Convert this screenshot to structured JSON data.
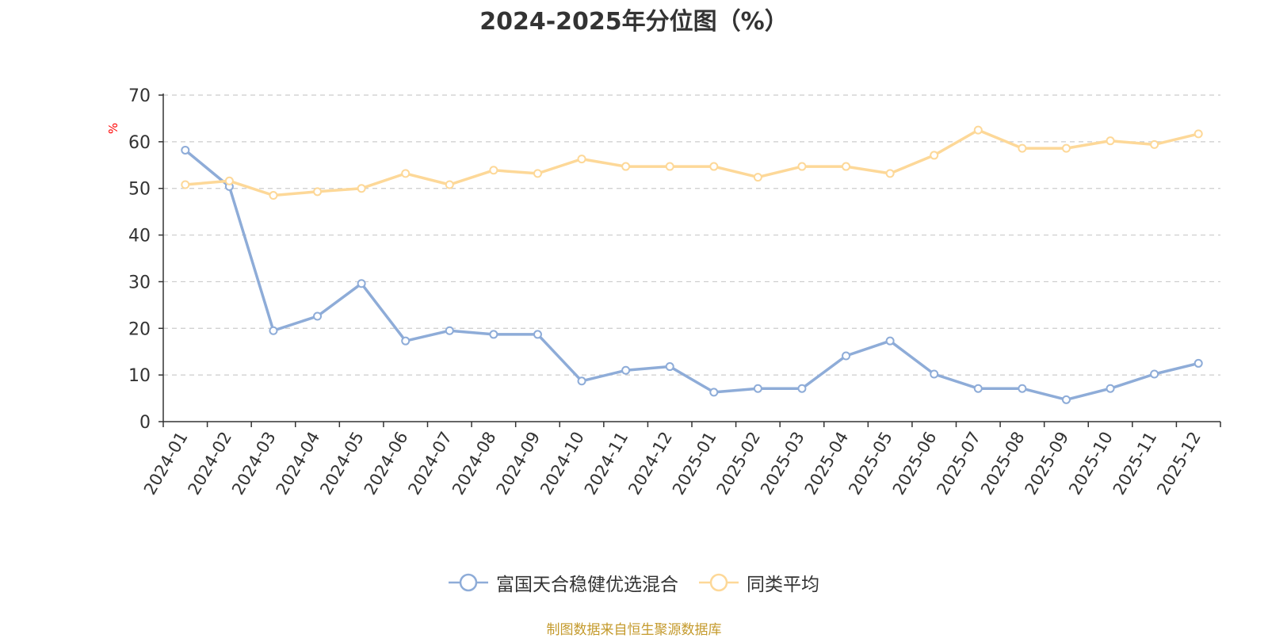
{
  "chart_data": {
    "type": "line",
    "title": "2024-2025年分位图（%）",
    "ylabel": "%",
    "ylim": [
      0,
      70
    ],
    "yticks": [
      0,
      10,
      20,
      30,
      40,
      50,
      60,
      70
    ],
    "grid": true,
    "legend_position": "bottom",
    "categories": [
      "2024-01",
      "2024-02",
      "2024-03",
      "2024-04",
      "2024-05",
      "2024-06",
      "2024-07",
      "2024-08",
      "2024-09",
      "2024-10",
      "2024-11",
      "2024-12",
      "2025-01",
      "2025-02",
      "2025-03",
      "2025-04",
      "2025-05",
      "2025-06",
      "2025-07",
      "2025-08",
      "2025-09",
      "2025-10",
      "2025-11",
      "2025-12"
    ],
    "series": [
      {
        "name": "富国天合稳健优选混合",
        "color": "#8eacd8",
        "values": [
          58.2,
          50.4,
          19.5,
          22.6,
          29.6,
          17.3,
          19.5,
          18.7,
          18.7,
          8.7,
          11.0,
          11.8,
          6.3,
          7.1,
          7.1,
          14.1,
          17.3,
          10.2,
          7.1,
          7.1,
          4.7,
          7.1,
          10.2,
          12.5
        ]
      },
      {
        "name": "同类平均",
        "color": "#fdd898",
        "values": [
          50.8,
          51.6,
          48.5,
          49.3,
          50.0,
          53.2,
          50.8,
          53.9,
          53.2,
          56.3,
          54.7,
          54.7,
          54.7,
          52.4,
          54.7,
          54.7,
          53.2,
          57.1,
          62.5,
          58.6,
          58.6,
          60.2,
          59.4,
          61.7
        ]
      }
    ]
  },
  "source_note": "制图数据来自恒生聚源数据库"
}
